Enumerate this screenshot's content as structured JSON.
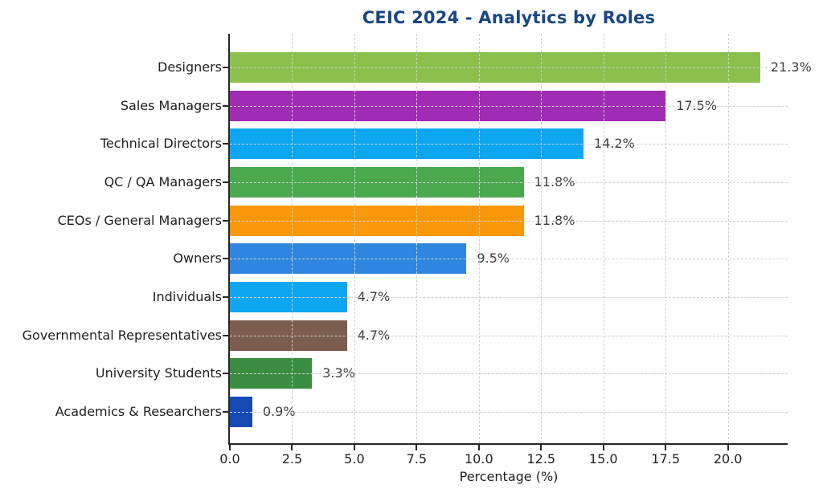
{
  "chart_data": {
    "type": "bar",
    "orientation": "horizontal",
    "title": "CEIC 2024 - Analytics by Roles",
    "xlabel": "Percentage (%)",
    "categories": [
      "Designers",
      "Sales Managers",
      "Technical Directors",
      "QC / QA Managers",
      "CEOs / General Managers",
      "Owners",
      "Individuals",
      "Governmental Representatives",
      "University Students",
      "Academics & Researchers"
    ],
    "values": [
      21.3,
      17.5,
      14.2,
      11.8,
      11.8,
      9.5,
      4.7,
      4.7,
      3.3,
      0.9
    ],
    "value_labels": [
      "21.3%",
      "17.5%",
      "14.2%",
      "11.8%",
      "11.8%",
      "9.5%",
      "4.7%",
      "4.7%",
      "3.3%",
      "0.9%"
    ],
    "bar_colors": [
      "#8CC04D",
      "#A02BB4",
      "#0DA6F1",
      "#4AA84F",
      "#F8980A",
      "#2E86E0",
      "#0DA6F1",
      "#7B5C4D",
      "#3A8C40",
      "#1649B4"
    ],
    "xticks": [
      "0.0",
      "2.5",
      "5.0",
      "7.5",
      "10.0",
      "12.5",
      "15.0",
      "17.5",
      "20.0"
    ],
    "xlim": [
      0,
      22.4
    ],
    "grid": true,
    "legend": false,
    "colors": {
      "title": "#1A4682",
      "axis_text": "#202020",
      "value_text": "#3C3C3C",
      "grid": "#CFCFCF",
      "spine": "#262626",
      "background": "#FFFFFF"
    }
  }
}
